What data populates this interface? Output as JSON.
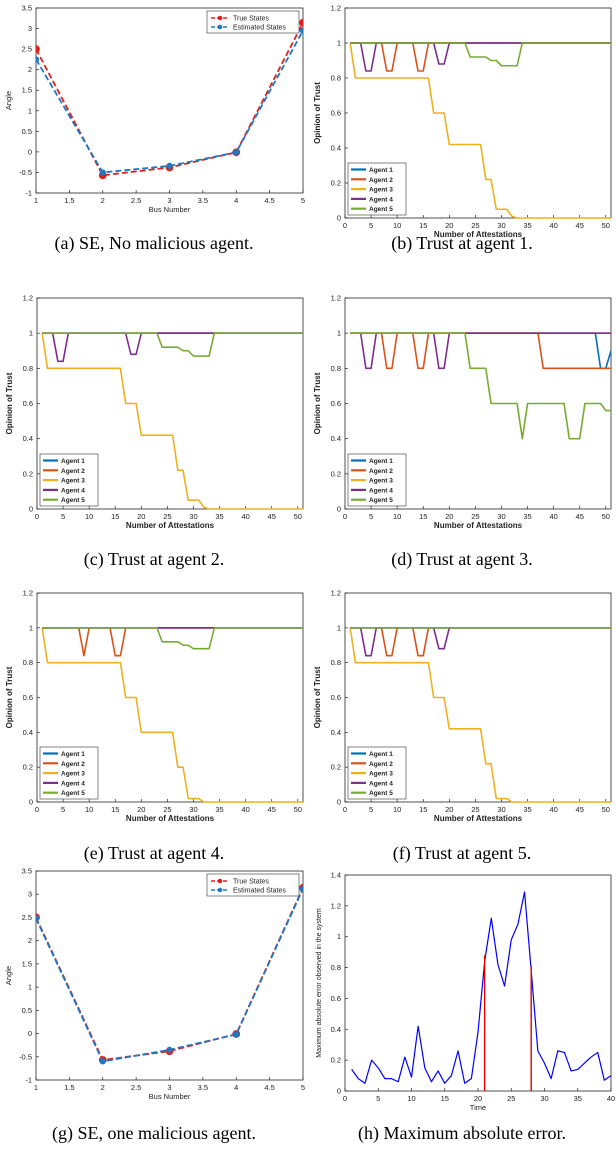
{
  "colors": {
    "true_states": "#e0201f",
    "estimated_states": "#1f78c2",
    "agent1": "#0072bd",
    "agent2": "#d95319",
    "agent3": "#edb120",
    "agent4": "#7e2f8e",
    "agent5": "#77ac30",
    "max_error": "#0000ff",
    "malicious_marker": "#e00000"
  },
  "chart_data": [
    {
      "id": "a",
      "type": "line",
      "caption": "(a) SE, No malicious agent.",
      "xlabel": "Bus Number",
      "ylabel": "Angle",
      "xlim": [
        1,
        5
      ],
      "ylim": [
        -1,
        3.5
      ],
      "xticks": [
        1,
        1.5,
        2,
        2.5,
        3,
        3.5,
        4,
        4.5,
        5
      ],
      "yticks": [
        -1,
        -0.5,
        0,
        0.5,
        1,
        1.5,
        2,
        2.5,
        3,
        3.5
      ],
      "legend_position": "top-right",
      "series": [
        {
          "name": "True States",
          "x": [
            1,
            2,
            3,
            4,
            5
          ],
          "values": [
            2.5,
            -0.57,
            -0.38,
            -0.01,
            3.14
          ]
        },
        {
          "name": "Estimated States",
          "x": [
            1,
            2,
            3,
            4,
            5
          ],
          "values": [
            2.25,
            -0.5,
            -0.34,
            -0.01,
            2.95
          ]
        }
      ]
    },
    {
      "id": "b",
      "type": "line",
      "caption": "(b) Trust at agent 1.",
      "xlabel": "Number of Attestations",
      "ylabel": "Opinion of Trust",
      "xlim": [
        0,
        51
      ],
      "ylim": [
        0,
        1.2
      ],
      "xticks": [
        0,
        5,
        10,
        15,
        20,
        25,
        30,
        35,
        40,
        45,
        50
      ],
      "yticks": [
        0,
        0.2,
        0.4,
        0.6,
        0.8,
        1,
        1.2
      ],
      "legend_position": "bottom-left",
      "series": [
        {
          "name": "Agent 1",
          "x": [
            1,
            51
          ],
          "values": [
            1,
            1
          ]
        },
        {
          "name": "Agent 2",
          "x": [
            1,
            7,
            8,
            9,
            10,
            13,
            14,
            15,
            16,
            51
          ],
          "values": [
            1,
            1,
            0.84,
            0.84,
            1,
            1,
            0.84,
            0.84,
            1,
            1
          ]
        },
        {
          "name": "Agent 3",
          "x": [
            1,
            2,
            13,
            14,
            16,
            17,
            19,
            20,
            26,
            27,
            28,
            29,
            30,
            31,
            32,
            33,
            51
          ],
          "values": [
            1,
            0.8,
            0.8,
            0.8,
            0.8,
            0.6,
            0.6,
            0.42,
            0.42,
            0.22,
            0.22,
            0.05,
            0.05,
            0.05,
            0.01,
            0,
            0
          ]
        },
        {
          "name": "Agent 4",
          "x": [
            1,
            3,
            4,
            5,
            6,
            17,
            18,
            19,
            20,
            51
          ],
          "values": [
            1,
            1,
            0.84,
            0.84,
            1,
            1,
            0.88,
            0.88,
            1,
            1
          ]
        },
        {
          "name": "Agent 5",
          "x": [
            1,
            23,
            24,
            27,
            28,
            29,
            30,
            33,
            34,
            51
          ],
          "values": [
            1,
            1,
            0.92,
            0.92,
            0.9,
            0.9,
            0.87,
            0.87,
            1,
            1
          ]
        }
      ]
    },
    {
      "id": "c",
      "type": "line",
      "caption": "(c) Trust at agent 2.",
      "xlabel": "Number of Attestations",
      "ylabel": "Opinion of Trust",
      "xlim": [
        0,
        51
      ],
      "ylim": [
        0,
        1.2
      ],
      "xticks": [
        0,
        5,
        10,
        15,
        20,
        25,
        30,
        35,
        40,
        45,
        50
      ],
      "yticks": [
        0,
        0.2,
        0.4,
        0.6,
        0.8,
        1,
        1.2
      ],
      "legend_position": "bottom-left",
      "series": [
        {
          "name": "Agent 1",
          "x": [
            1,
            51
          ],
          "values": [
            1,
            1
          ]
        },
        {
          "name": "Agent 2",
          "x": [
            1,
            51
          ],
          "values": [
            1,
            1
          ]
        },
        {
          "name": "Agent 3",
          "x": [
            1,
            2,
            13,
            14,
            16,
            17,
            19,
            20,
            26,
            27,
            28,
            29,
            30,
            31,
            32,
            33,
            51
          ],
          "values": [
            1,
            0.8,
            0.8,
            0.8,
            0.8,
            0.6,
            0.6,
            0.42,
            0.42,
            0.22,
            0.22,
            0.05,
            0.05,
            0.05,
            0.01,
            0,
            0
          ]
        },
        {
          "name": "Agent 4",
          "x": [
            1,
            3,
            4,
            5,
            6,
            17,
            18,
            19,
            20,
            51
          ],
          "values": [
            1,
            1,
            0.84,
            0.84,
            1,
            1,
            0.88,
            0.88,
            1,
            1
          ]
        },
        {
          "name": "Agent 5",
          "x": [
            1,
            23,
            24,
            27,
            28,
            29,
            30,
            33,
            34,
            51
          ],
          "values": [
            1,
            1,
            0.92,
            0.92,
            0.9,
            0.9,
            0.87,
            0.87,
            1,
            1
          ]
        }
      ]
    },
    {
      "id": "d",
      "type": "line",
      "caption": "(d) Trust at agent 3.",
      "xlabel": "Number of Attestations",
      "ylabel": "Opinion of Trust",
      "xlim": [
        0,
        51
      ],
      "ylim": [
        0,
        1.2
      ],
      "xticks": [
        0,
        5,
        10,
        15,
        20,
        25,
        30,
        35,
        40,
        45,
        50
      ],
      "yticks": [
        0,
        0.2,
        0.4,
        0.6,
        0.8,
        1,
        1.2
      ],
      "legend_position": "bottom-left",
      "series": [
        {
          "name": "Agent 1",
          "x": [
            1,
            48,
            49,
            50,
            51
          ],
          "values": [
            1,
            1,
            0.8,
            0.8,
            0.9
          ]
        },
        {
          "name": "Agent 2",
          "x": [
            1,
            7,
            8,
            9,
            10,
            13,
            14,
            15,
            16,
            37,
            38,
            51
          ],
          "values": [
            1,
            1,
            0.8,
            0.8,
            1,
            1,
            0.8,
            0.8,
            1,
            1,
            0.8,
            0.8
          ]
        },
        {
          "name": "Agent 3",
          "x": [
            1,
            51
          ],
          "values": [
            1,
            1
          ]
        },
        {
          "name": "Agent 4",
          "x": [
            1,
            3,
            4,
            5,
            6,
            17,
            18,
            19,
            20,
            51
          ],
          "values": [
            1,
            1,
            0.8,
            0.8,
            1,
            1,
            0.8,
            0.8,
            1,
            1
          ]
        },
        {
          "name": "Agent 5",
          "x": [
            1,
            23,
            24,
            26,
            27,
            28,
            29,
            33,
            34,
            35,
            42,
            43,
            45,
            46,
            49,
            50,
            51
          ],
          "values": [
            1,
            1,
            0.8,
            0.8,
            0.8,
            0.6,
            0.6,
            0.6,
            0.4,
            0.6,
            0.6,
            0.4,
            0.4,
            0.6,
            0.6,
            0.56,
            0.56
          ]
        }
      ]
    },
    {
      "id": "e",
      "type": "line",
      "caption": "(e) Trust at agent 4.",
      "xlabel": "Number of Attestations",
      "ylabel": "Opinion of Trust",
      "xlim": [
        0,
        51
      ],
      "ylim": [
        0,
        1.2
      ],
      "xticks": [
        0,
        5,
        10,
        15,
        20,
        25,
        30,
        35,
        40,
        45,
        50
      ],
      "yticks": [
        0,
        0.2,
        0.4,
        0.6,
        0.8,
        1,
        1.2
      ],
      "legend_position": "bottom-left",
      "series": [
        {
          "name": "Agent 1",
          "x": [
            1,
            51
          ],
          "values": [
            1,
            1
          ]
        },
        {
          "name": "Agent 2",
          "x": [
            1,
            8,
            9,
            10,
            14,
            15,
            16,
            17,
            51
          ],
          "values": [
            1,
            1,
            0.84,
            1,
            1,
            0.84,
            0.84,
            1,
            1
          ]
        },
        {
          "name": "Agent 3",
          "x": [
            1,
            2,
            13,
            14,
            16,
            17,
            19,
            20,
            26,
            27,
            28,
            29,
            30,
            31,
            32,
            51
          ],
          "values": [
            1,
            0.8,
            0.8,
            0.8,
            0.8,
            0.6,
            0.6,
            0.4,
            0.4,
            0.2,
            0.2,
            0.02,
            0.02,
            0.02,
            0,
            0
          ]
        },
        {
          "name": "Agent 4",
          "x": [
            1,
            51
          ],
          "values": [
            1,
            1
          ]
        },
        {
          "name": "Agent 5",
          "x": [
            1,
            23,
            24,
            27,
            28,
            29,
            30,
            33,
            34,
            51
          ],
          "values": [
            1,
            1,
            0.92,
            0.92,
            0.9,
            0.9,
            0.88,
            0.88,
            1,
            1
          ]
        }
      ]
    },
    {
      "id": "f",
      "type": "line",
      "caption": "(f) Trust at agent 5.",
      "xlabel": "Number of Attestations",
      "ylabel": "Opinion of Trust",
      "xlim": [
        0,
        51
      ],
      "ylim": [
        0,
        1.2
      ],
      "xticks": [
        0,
        5,
        10,
        15,
        20,
        25,
        30,
        35,
        40,
        45,
        50
      ],
      "yticks": [
        0,
        0.2,
        0.4,
        0.6,
        0.8,
        1,
        1.2
      ],
      "legend_position": "bottom-left",
      "series": [
        {
          "name": "Agent 1",
          "x": [
            1,
            51
          ],
          "values": [
            1,
            1
          ]
        },
        {
          "name": "Agent 2",
          "x": [
            1,
            7,
            8,
            9,
            10,
            13,
            14,
            15,
            16,
            51
          ],
          "values": [
            1,
            1,
            0.84,
            0.84,
            1,
            1,
            0.84,
            0.84,
            1,
            1
          ]
        },
        {
          "name": "Agent 3",
          "x": [
            1,
            2,
            13,
            14,
            16,
            17,
            19,
            20,
            26,
            27,
            28,
            29,
            30,
            31,
            32,
            51
          ],
          "values": [
            1,
            0.8,
            0.8,
            0.8,
            0.8,
            0.6,
            0.6,
            0.42,
            0.42,
            0.22,
            0.22,
            0.02,
            0.02,
            0.02,
            0,
            0
          ]
        },
        {
          "name": "Agent 4",
          "x": [
            1,
            3,
            4,
            5,
            6,
            17,
            18,
            19,
            20,
            51
          ],
          "values": [
            1,
            1,
            0.84,
            0.84,
            1,
            1,
            0.88,
            0.88,
            1,
            1
          ]
        },
        {
          "name": "Agent 5",
          "x": [
            1,
            51
          ],
          "values": [
            1,
            1
          ]
        }
      ]
    },
    {
      "id": "g",
      "type": "line",
      "caption": "(g) SE, one malicious agent.",
      "xlabel": "Bus Number",
      "ylabel": "Angle",
      "xlim": [
        1,
        5
      ],
      "ylim": [
        -1,
        3.5
      ],
      "xticks": [
        1,
        1.5,
        2,
        2.5,
        3,
        3.5,
        4,
        4.5,
        5
      ],
      "yticks": [
        -1,
        -0.5,
        0,
        0.5,
        1,
        1.5,
        2,
        2.5,
        3,
        3.5
      ],
      "legend_position": "top-right",
      "series": [
        {
          "name": "True States",
          "x": [
            1,
            2,
            3,
            4,
            5
          ],
          "values": [
            2.5,
            -0.57,
            -0.38,
            -0.01,
            3.14
          ]
        },
        {
          "name": "Estimated States",
          "x": [
            1,
            2,
            3,
            4,
            5
          ],
          "values": [
            2.48,
            -0.6,
            -0.35,
            -0.02,
            3.12
          ]
        }
      ]
    },
    {
      "id": "h",
      "type": "line",
      "caption": "(h) Maximum absolute error.",
      "xlabel": "Time",
      "ylabel": "Maximum absolute error observed in the system",
      "xlim": [
        0,
        40
      ],
      "ylim": [
        0,
        1.4
      ],
      "xticks": [
        0,
        5,
        10,
        15,
        20,
        25,
        30,
        35,
        40
      ],
      "yticks": [
        0,
        0.2,
        0.4,
        0.6,
        0.8,
        1,
        1.2,
        1.4
      ],
      "legend_position": "none",
      "series": [
        {
          "x": [
            1,
            2,
            3,
            4,
            5,
            6,
            7,
            8,
            9,
            10,
            11,
            12,
            13,
            14,
            15,
            16,
            17,
            18,
            19,
            20,
            21,
            22,
            23,
            24,
            25,
            26,
            27,
            28,
            29,
            30,
            31,
            32,
            33,
            34,
            35,
            36,
            37,
            38,
            39,
            40
          ],
          "values": [
            0.14,
            0.08,
            0.05,
            0.2,
            0.15,
            0.08,
            0.08,
            0.06,
            0.22,
            0.09,
            0.42,
            0.15,
            0.06,
            0.13,
            0.05,
            0.1,
            0.26,
            0.05,
            0.08,
            0.38,
            0.84,
            1.12,
            0.82,
            0.68,
            0.98,
            1.08,
            1.29,
            0.78,
            0.26,
            0.18,
            0.08,
            0.26,
            0.25,
            0.13,
            0.14,
            0.18,
            0.22,
            0.25,
            0.07,
            0.1
          ]
        },
        {
          "x": [
            21,
            21
          ],
          "values": [
            0,
            0.88
          ]
        },
        {
          "x": [
            28,
            28
          ],
          "values": [
            0,
            0.81
          ]
        }
      ]
    }
  ]
}
